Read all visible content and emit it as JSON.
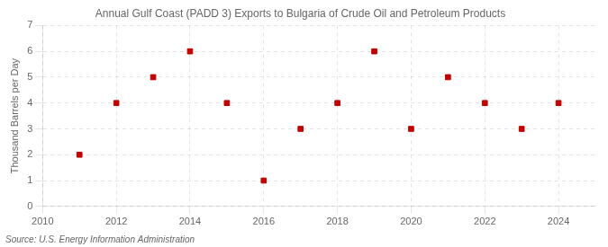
{
  "chart_data": {
    "type": "scatter",
    "title": "Annual Gulf Coast (PADD 3) Exports to Bulgaria of Crude Oil and Petroleum Products",
    "ylabel": "Thousand Barrels per Day",
    "annotations": [
      "Source: U.S. Energy Information Administration"
    ],
    "x": [
      2011,
      2012,
      2013,
      2014,
      2015,
      2016,
      2017,
      2018,
      2019,
      2020,
      2021,
      2022,
      2023,
      2024
    ],
    "values": [
      2,
      4,
      5,
      6,
      4,
      1,
      3,
      4,
      6,
      3,
      5,
      4,
      3,
      4
    ],
    "color": "#c00000",
    "marker": "square",
    "xlim": [
      2010,
      2025
    ],
    "ylim": [
      0,
      7
    ],
    "xticks": [
      2010,
      2012,
      2014,
      2016,
      2018,
      2020,
      2022,
      2024
    ],
    "yticks": [
      0,
      1,
      2,
      3,
      4,
      5,
      6,
      7
    ],
    "grid": true
  }
}
